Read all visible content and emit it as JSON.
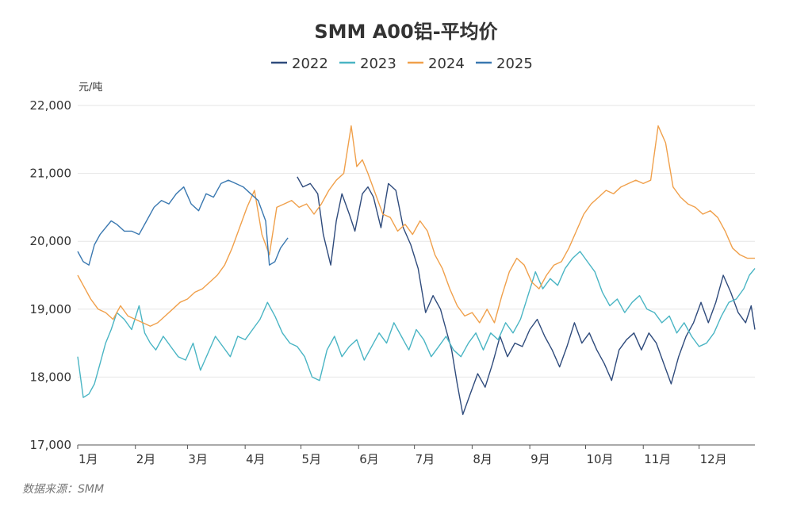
{
  "chart_data": {
    "type": "line",
    "title": "SMM A00铝-平均价",
    "ylabel": "元/吨",
    "ylim": [
      17000,
      22000
    ],
    "y_ticks": [
      "22,000",
      "21,000",
      "20,000",
      "19,000",
      "18,000",
      "17,000"
    ],
    "x_month_labels": [
      "1月",
      "2月",
      "3月",
      "4月",
      "5月",
      "6月",
      "7月",
      "8月",
      "9月",
      "10月",
      "11月",
      "12月"
    ],
    "grid": true,
    "legend_position": "top-center",
    "source": "数据来源：SMM",
    "series": [
      {
        "name": "2022",
        "color": "#2f4b7c",
        "start_day": 119,
        "end_day": 365,
        "points": [
          [
            119,
            20950
          ],
          [
            122,
            20800
          ],
          [
            126,
            20850
          ],
          [
            130,
            20700
          ],
          [
            133,
            20100
          ],
          [
            137,
            19650
          ],
          [
            140,
            20300
          ],
          [
            143,
            20700
          ],
          [
            147,
            20400
          ],
          [
            150,
            20150
          ],
          [
            154,
            20700
          ],
          [
            157,
            20800
          ],
          [
            160,
            20650
          ],
          [
            164,
            20200
          ],
          [
            168,
            20850
          ],
          [
            172,
            20750
          ],
          [
            176,
            20200
          ],
          [
            180,
            19950
          ],
          [
            184,
            19600
          ],
          [
            188,
            18950
          ],
          [
            192,
            19200
          ],
          [
            196,
            19000
          ],
          [
            199,
            18700
          ],
          [
            202,
            18400
          ],
          [
            205,
            17900
          ],
          [
            208,
            17450
          ],
          [
            212,
            17750
          ],
          [
            216,
            18050
          ],
          [
            220,
            17850
          ],
          [
            224,
            18200
          ],
          [
            228,
            18600
          ],
          [
            232,
            18300
          ],
          [
            236,
            18500
          ],
          [
            240,
            18450
          ],
          [
            244,
            18700
          ],
          [
            248,
            18850
          ],
          [
            252,
            18600
          ],
          [
            256,
            18400
          ],
          [
            260,
            18150
          ],
          [
            264,
            18450
          ],
          [
            268,
            18800
          ],
          [
            272,
            18500
          ],
          [
            276,
            18650
          ],
          [
            280,
            18400
          ],
          [
            284,
            18200
          ],
          [
            288,
            17950
          ],
          [
            292,
            18400
          ],
          [
            296,
            18550
          ],
          [
            300,
            18650
          ],
          [
            304,
            18400
          ],
          [
            308,
            18650
          ],
          [
            312,
            18500
          ],
          [
            316,
            18200
          ],
          [
            320,
            17900
          ],
          [
            324,
            18300
          ],
          [
            328,
            18600
          ],
          [
            332,
            18800
          ],
          [
            336,
            19100
          ],
          [
            340,
            18800
          ],
          [
            344,
            19100
          ],
          [
            348,
            19500
          ],
          [
            352,
            19250
          ],
          [
            356,
            18950
          ],
          [
            360,
            18800
          ],
          [
            363,
            19050
          ],
          [
            365,
            18700
          ]
        ]
      },
      {
        "name": "2023",
        "color": "#4ab5c4",
        "start_day": 1,
        "end_day": 365,
        "points": [
          [
            1,
            18300
          ],
          [
            4,
            17700
          ],
          [
            7,
            17750
          ],
          [
            10,
            17900
          ],
          [
            13,
            18200
          ],
          [
            16,
            18500
          ],
          [
            19,
            18700
          ],
          [
            22,
            18950
          ],
          [
            26,
            18850
          ],
          [
            30,
            18700
          ],
          [
            34,
            19050
          ],
          [
            37,
            18650
          ],
          [
            40,
            18500
          ],
          [
            43,
            18400
          ],
          [
            47,
            18600
          ],
          [
            51,
            18450
          ],
          [
            55,
            18300
          ],
          [
            59,
            18250
          ],
          [
            63,
            18500
          ],
          [
            67,
            18100
          ],
          [
            71,
            18350
          ],
          [
            75,
            18600
          ],
          [
            79,
            18450
          ],
          [
            83,
            18300
          ],
          [
            87,
            18600
          ],
          [
            91,
            18550
          ],
          [
            95,
            18700
          ],
          [
            99,
            18850
          ],
          [
            103,
            19100
          ],
          [
            107,
            18900
          ],
          [
            111,
            18650
          ],
          [
            115,
            18500
          ],
          [
            119,
            18450
          ],
          [
            123,
            18300
          ],
          [
            127,
            18000
          ],
          [
            131,
            17950
          ],
          [
            135,
            18400
          ],
          [
            139,
            18600
          ],
          [
            143,
            18300
          ],
          [
            147,
            18450
          ],
          [
            151,
            18550
          ],
          [
            155,
            18250
          ],
          [
            159,
            18450
          ],
          [
            163,
            18650
          ],
          [
            167,
            18500
          ],
          [
            171,
            18800
          ],
          [
            175,
            18600
          ],
          [
            179,
            18400
          ],
          [
            183,
            18700
          ],
          [
            187,
            18550
          ],
          [
            191,
            18300
          ],
          [
            195,
            18450
          ],
          [
            199,
            18600
          ],
          [
            203,
            18400
          ],
          [
            207,
            18300
          ],
          [
            211,
            18500
          ],
          [
            215,
            18650
          ],
          [
            219,
            18400
          ],
          [
            223,
            18650
          ],
          [
            227,
            18550
          ],
          [
            231,
            18800
          ],
          [
            235,
            18650
          ],
          [
            239,
            18850
          ],
          [
            243,
            19200
          ],
          [
            247,
            19550
          ],
          [
            251,
            19300
          ],
          [
            255,
            19450
          ],
          [
            259,
            19350
          ],
          [
            263,
            19600
          ],
          [
            267,
            19750
          ],
          [
            271,
            19850
          ],
          [
            275,
            19700
          ],
          [
            279,
            19550
          ],
          [
            283,
            19250
          ],
          [
            287,
            19050
          ],
          [
            291,
            19150
          ],
          [
            295,
            18950
          ],
          [
            299,
            19100
          ],
          [
            303,
            19200
          ],
          [
            307,
            19000
          ],
          [
            311,
            18950
          ],
          [
            315,
            18800
          ],
          [
            319,
            18900
          ],
          [
            323,
            18650
          ],
          [
            327,
            18800
          ],
          [
            331,
            18600
          ],
          [
            335,
            18450
          ],
          [
            339,
            18500
          ],
          [
            343,
            18650
          ],
          [
            347,
            18900
          ],
          [
            351,
            19100
          ],
          [
            355,
            19150
          ],
          [
            359,
            19300
          ],
          [
            362,
            19500
          ],
          [
            365,
            19600
          ]
        ]
      },
      {
        "name": "2024",
        "color": "#f0a04b",
        "start_day": 1,
        "end_day": 365,
        "points": [
          [
            1,
            19500
          ],
          [
            4,
            19350
          ],
          [
            8,
            19150
          ],
          [
            12,
            19000
          ],
          [
            16,
            18950
          ],
          [
            20,
            18850
          ],
          [
            24,
            19050
          ],
          [
            28,
            18900
          ],
          [
            32,
            18850
          ],
          [
            36,
            18800
          ],
          [
            40,
            18750
          ],
          [
            44,
            18800
          ],
          [
            48,
            18900
          ],
          [
            52,
            19000
          ],
          [
            56,
            19100
          ],
          [
            60,
            19150
          ],
          [
            64,
            19250
          ],
          [
            68,
            19300
          ],
          [
            72,
            19400
          ],
          [
            76,
            19500
          ],
          [
            80,
            19650
          ],
          [
            84,
            19900
          ],
          [
            88,
            20200
          ],
          [
            92,
            20500
          ],
          [
            96,
            20750
          ],
          [
            100,
            20100
          ],
          [
            104,
            19800
          ],
          [
            108,
            20500
          ],
          [
            112,
            20550
          ],
          [
            116,
            20600
          ],
          [
            120,
            20500
          ],
          [
            124,
            20550
          ],
          [
            128,
            20400
          ],
          [
            132,
            20550
          ],
          [
            136,
            20750
          ],
          [
            140,
            20900
          ],
          [
            144,
            21000
          ],
          [
            148,
            21700
          ],
          [
            151,
            21100
          ],
          [
            154,
            21200
          ],
          [
            157,
            21000
          ],
          [
            161,
            20700
          ],
          [
            165,
            20400
          ],
          [
            169,
            20350
          ],
          [
            173,
            20150
          ],
          [
            177,
            20250
          ],
          [
            181,
            20100
          ],
          [
            185,
            20300
          ],
          [
            189,
            20150
          ],
          [
            193,
            19800
          ],
          [
            197,
            19600
          ],
          [
            201,
            19300
          ],
          [
            205,
            19050
          ],
          [
            209,
            18900
          ],
          [
            213,
            18950
          ],
          [
            217,
            18800
          ],
          [
            221,
            19000
          ],
          [
            225,
            18800
          ],
          [
            229,
            19200
          ],
          [
            233,
            19550
          ],
          [
            237,
            19750
          ],
          [
            241,
            19650
          ],
          [
            245,
            19400
          ],
          [
            249,
            19300
          ],
          [
            253,
            19500
          ],
          [
            257,
            19650
          ],
          [
            261,
            19700
          ],
          [
            265,
            19900
          ],
          [
            269,
            20150
          ],
          [
            273,
            20400
          ],
          [
            277,
            20550
          ],
          [
            281,
            20650
          ],
          [
            285,
            20750
          ],
          [
            289,
            20700
          ],
          [
            293,
            20800
          ],
          [
            297,
            20850
          ],
          [
            301,
            20900
          ],
          [
            305,
            20850
          ],
          [
            309,
            20900
          ],
          [
            313,
            21700
          ],
          [
            317,
            21450
          ],
          [
            321,
            20800
          ],
          [
            325,
            20650
          ],
          [
            329,
            20550
          ],
          [
            333,
            20500
          ],
          [
            337,
            20400
          ],
          [
            341,
            20450
          ],
          [
            345,
            20350
          ],
          [
            349,
            20150
          ],
          [
            353,
            19900
          ],
          [
            357,
            19800
          ],
          [
            361,
            19750
          ],
          [
            365,
            19750
          ]
        ]
      },
      {
        "name": "2025",
        "color": "#3a78b0",
        "start_day": 1,
        "end_day": 114,
        "points": [
          [
            1,
            19850
          ],
          [
            4,
            19700
          ],
          [
            7,
            19650
          ],
          [
            10,
            19950
          ],
          [
            13,
            20100
          ],
          [
            16,
            20200
          ],
          [
            19,
            20300
          ],
          [
            22,
            20250
          ],
          [
            26,
            20150
          ],
          [
            30,
            20150
          ],
          [
            34,
            20100
          ],
          [
            38,
            20300
          ],
          [
            42,
            20500
          ],
          [
            46,
            20600
          ],
          [
            50,
            20550
          ],
          [
            54,
            20700
          ],
          [
            58,
            20800
          ],
          [
            62,
            20550
          ],
          [
            66,
            20450
          ],
          [
            70,
            20700
          ],
          [
            74,
            20650
          ],
          [
            78,
            20850
          ],
          [
            82,
            20900
          ],
          [
            86,
            20850
          ],
          [
            90,
            20800
          ],
          [
            94,
            20700
          ],
          [
            98,
            20600
          ],
          [
            102,
            20300
          ],
          [
            104,
            19650
          ],
          [
            107,
            19700
          ],
          [
            110,
            19900
          ],
          [
            114,
            20050
          ]
        ]
      }
    ]
  }
}
